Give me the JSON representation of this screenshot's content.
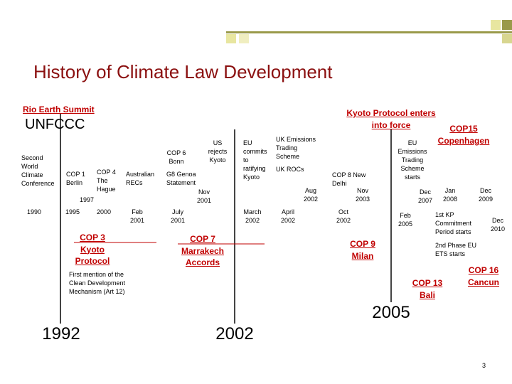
{
  "header": {
    "title": "History of Climate Law Development"
  },
  "items": [
    {
      "lines": [
        "Rio Earth Summit"
      ]
    },
    {
      "lines": [
        "UNFCCC"
      ]
    },
    {
      "lines": [
        "Kyoto Protocol enters",
        "into force"
      ]
    },
    {
      "lines": [
        "COP15",
        "Copenhagen"
      ]
    },
    {
      "lines": [
        "Second",
        "World",
        "Climate",
        "Conference"
      ]
    },
    {
      "lines": [
        "COP 1",
        "Berlin"
      ]
    },
    {
      "lines": [
        "COP 4",
        "The",
        "Hague"
      ]
    },
    {
      "lines": [
        "1997"
      ]
    },
    {
      "lines": [
        "Australian",
        "RECs"
      ]
    },
    {
      "lines": [
        "COP 6",
        "Bonn"
      ]
    },
    {
      "lines": [
        "US",
        "rejects",
        "Kyoto"
      ]
    },
    {
      "lines": [
        "G8 Genoa",
        "Statement"
      ]
    },
    {
      "lines": [
        "Nov",
        "2001"
      ]
    },
    {
      "lines": [
        "EU",
        "commits",
        "to",
        "ratifying",
        "Kyoto"
      ]
    },
    {
      "lines": [
        "UK Emissions",
        "Trading",
        "Scheme"
      ]
    },
    {
      "lines": [
        "UK ROCs"
      ]
    },
    {
      "lines": [
        "Aug",
        "2002"
      ]
    },
    {
      "lines": [
        "COP 8 New",
        "Delhi"
      ]
    },
    {
      "lines": [
        "Nov",
        "2003"
      ]
    },
    {
      "lines": [
        "EU",
        "Emissions",
        "Trading",
        "Scheme",
        "starts"
      ]
    },
    {
      "lines": [
        "Dec",
        "2007"
      ]
    },
    {
      "lines": [
        "Jan",
        "2008"
      ]
    },
    {
      "lines": [
        "Dec",
        "2009"
      ]
    },
    {
      "lines": [
        "1990"
      ]
    },
    {
      "lines": [
        "1995"
      ]
    },
    {
      "lines": [
        "2000"
      ]
    },
    {
      "lines": [
        "Feb",
        "2001"
      ]
    },
    {
      "lines": [
        "July",
        "2001"
      ]
    },
    {
      "lines": [
        "March",
        "2002"
      ]
    },
    {
      "lines": [
        "April",
        "2002"
      ]
    },
    {
      "lines": [
        "Oct",
        "2002"
      ]
    },
    {
      "lines": [
        "Feb",
        "2005"
      ]
    },
    {
      "lines": [
        "Dec",
        "2010"
      ]
    },
    {
      "lines": [
        "COP 3",
        "Kyoto",
        "Protocol"
      ]
    },
    {
      "lines": [
        "COP 7",
        "Marrakech",
        "Accords"
      ]
    },
    {
      "lines": [
        "COP 9",
        "Milan"
      ]
    },
    {
      "lines": [
        "1st KP",
        "Commitment",
        "Period starts"
      ]
    },
    {
      "lines": [
        "2nd Phase EU",
        "ETS starts"
      ]
    },
    {
      "lines": [
        "COP 16",
        "Cancun"
      ]
    },
    {
      "lines": [
        "COP 13",
        "Bali"
      ]
    },
    {
      "lines": [
        "First mention of the",
        "Clean Development",
        "Mechanism (Art 12)"
      ]
    },
    {
      "lines": [
        "1992"
      ]
    },
    {
      "lines": [
        "2002"
      ]
    },
    {
      "lines": [
        "2005"
      ]
    },
    {
      "lines": [
        "3"
      ]
    }
  ]
}
